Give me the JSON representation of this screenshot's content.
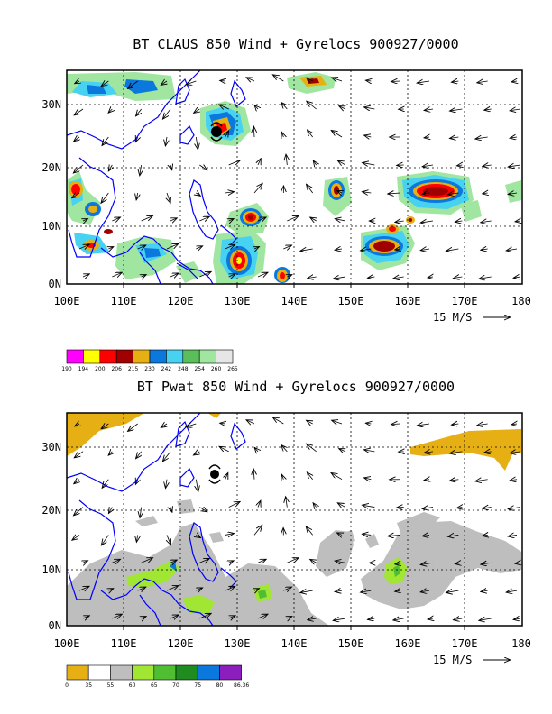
{
  "figures": [
    {
      "title": "BT CLAUS 850 Wind + Gyrelocs 900927/0000",
      "ref_vector_label": "15 M/S",
      "colorbar": {
        "labels": [
          "190",
          "194",
          "200",
          "206",
          "215",
          "230",
          "242",
          "248",
          "254",
          "260",
          "265"
        ],
        "colors": [
          "#ff00ff",
          "#ffff00",
          "#ff0000",
          "#a00000",
          "#e6af14",
          "#0a78dc",
          "#46d2f0",
          "#5abe5a",
          "#a0e6a0",
          "#e6e6e6"
        ]
      }
    },
    {
      "title": "BT Pwat 850 Wind + Gyrelocs 900927/0000",
      "ref_vector_label": "15 M/S",
      "colorbar": {
        "labels": [
          "0",
          "35",
          "55",
          "60",
          "65",
          "70",
          "75",
          "80",
          "86.36"
        ],
        "colors": [
          "#e6af14",
          "#ffffff",
          "#bebebe",
          "#a0e632",
          "#50be32",
          "#1e8c1e",
          "#0a78dc",
          "#8c1ebe"
        ]
      }
    }
  ],
  "chart_data": [
    {
      "type": "heatmap",
      "title": "BT CLAUS 850 Wind + Gyrelocs 900927/0000",
      "xlabel": "",
      "ylabel": "",
      "xlim": [
        100,
        180
      ],
      "ylim": [
        0,
        35
      ],
      "x_ticks": [
        "100E",
        "110E",
        "120E",
        "130E",
        "140E",
        "150E",
        "160E",
        "170E",
        "180"
      ],
      "y_ticks": [
        "0N",
        "10N",
        "20N",
        "30N"
      ],
      "grid": true,
      "overlay": "850 hPa wind vectors",
      "gyre_marker": {
        "lon": 126,
        "lat": 25.5
      },
      "legend": "colorbar below plot",
      "colorbar_levels": [
        190,
        194,
        200,
        206,
        215,
        230,
        242,
        248,
        254,
        260,
        265
      ],
      "cloud_clusters": [
        {
          "lon": 127,
          "lat": 26,
          "min_level": 200
        },
        {
          "lon": 165,
          "lat": 15.5,
          "min_level": 206
        },
        {
          "lon": 148,
          "lat": 15.5,
          "min_level": 206
        },
        {
          "lon": 131,
          "lat": 11.5,
          "min_level": 206
        },
        {
          "lon": 130,
          "lat": 4,
          "min_level": 200
        },
        {
          "lon": 157,
          "lat": 6.5,
          "min_level": 206
        },
        {
          "lon": 102,
          "lat": 15.5,
          "min_level": 206
        },
        {
          "lon": 104,
          "lat": 6.5,
          "min_level": 206
        },
        {
          "lon": 135.5,
          "lat": 1.5,
          "min_level": 206
        },
        {
          "lon": 160,
          "lat": 11,
          "min_level": 206
        }
      ]
    },
    {
      "type": "heatmap",
      "title": "BT Pwat 850 Wind + Gyrelocs 900927/0000",
      "xlabel": "",
      "ylabel": "",
      "xlim": [
        100,
        180
      ],
      "ylim": [
        0,
        35
      ],
      "x_ticks": [
        "100E",
        "110E",
        "120E",
        "130E",
        "140E",
        "150E",
        "160E",
        "170E",
        "180"
      ],
      "y_ticks": [
        "0N",
        "10N",
        "20N",
        "30N"
      ],
      "grid": true,
      "overlay": "850 hPa wind vectors",
      "gyre_marker": {
        "lon": 126,
        "lat": 25.5
      },
      "legend": "colorbar below plot",
      "colorbar_levels": [
        0,
        35,
        55,
        60,
        65,
        70,
        75,
        80,
        86.36
      ]
    }
  ]
}
